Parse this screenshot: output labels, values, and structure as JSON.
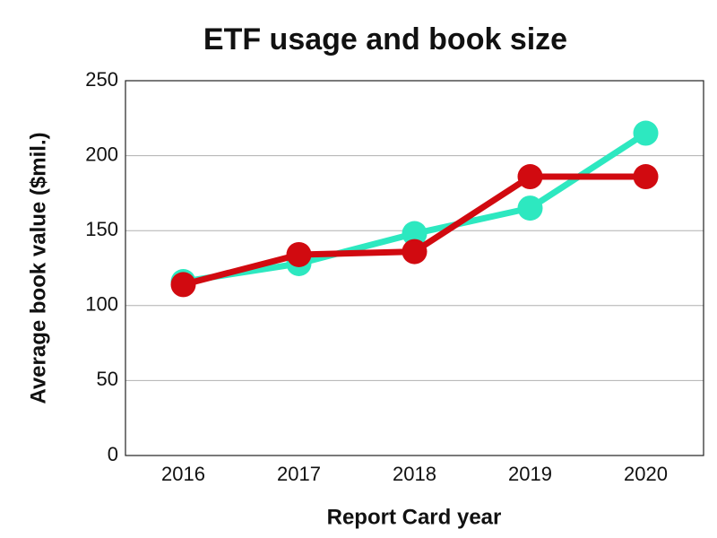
{
  "chart_data": {
    "type": "line",
    "title": "ETF usage and book size",
    "x_label": "Report Card year",
    "y_label": "Average book value ($mil.)",
    "categories": [
      "2016",
      "2017",
      "2018",
      "2019",
      "2020"
    ],
    "series": [
      {
        "color": "#2de8c0",
        "values": [
          116,
          128,
          148,
          165,
          215
        ]
      },
      {
        "color": "#d10a10",
        "values": [
          114,
          134,
          136,
          186,
          186
        ]
      }
    ],
    "ylim": [
      0,
      250
    ],
    "yticks": [
      0,
      50,
      100,
      150,
      200,
      250
    ],
    "grid": true
  }
}
